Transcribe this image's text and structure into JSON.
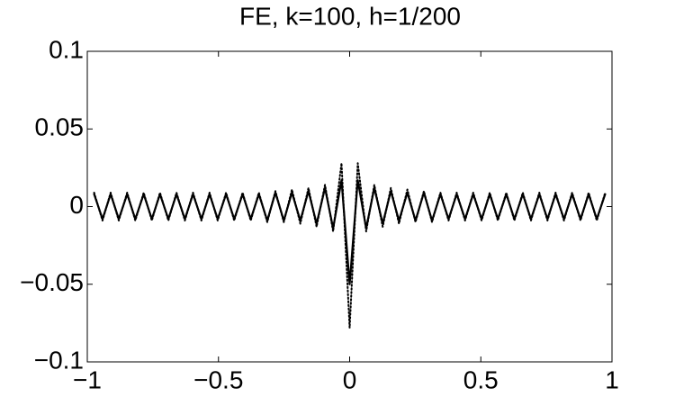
{
  "chart_data": {
    "type": "line",
    "title": "FE, k=100, h=1/200",
    "x": [
      -0.974,
      -0.942,
      -0.911,
      -0.88,
      -0.848,
      -0.817,
      -0.785,
      -0.754,
      -0.723,
      -0.691,
      -0.66,
      -0.628,
      -0.597,
      -0.565,
      -0.534,
      -0.503,
      -0.471,
      -0.44,
      -0.408,
      -0.377,
      -0.346,
      -0.314,
      -0.283,
      -0.251,
      -0.22,
      -0.188,
      -0.157,
      -0.126,
      -0.094,
      -0.063,
      -0.031,
      0,
      0.031,
      0.063,
      0.094,
      0.126,
      0.157,
      0.188,
      0.22,
      0.251,
      0.283,
      0.314,
      0.346,
      0.377,
      0.408,
      0.44,
      0.471,
      0.503,
      0.534,
      0.565,
      0.597,
      0.628,
      0.66,
      0.691,
      0.723,
      0.754,
      0.785,
      0.817,
      0.848,
      0.88,
      0.911,
      0.942,
      0.974
    ],
    "series": [
      {
        "color": "#000000",
        "dash": "solid",
        "values": [
          0.008,
          -0.008,
          0.008,
          -0.008,
          0.008,
          -0.008,
          0.008,
          -0.008,
          0.008,
          -0.008,
          0.008,
          -0.008,
          0.008,
          -0.008,
          0.008,
          -0.008,
          0.008,
          -0.008,
          0.008,
          -0.008,
          0.008,
          -0.009,
          0.009,
          -0.009,
          0.009,
          -0.009,
          0.01,
          -0.011,
          0.012,
          -0.014,
          0.017,
          -0.05,
          0.017,
          -0.014,
          0.012,
          -0.011,
          0.01,
          -0.009,
          0.009,
          -0.009,
          0.009,
          -0.009,
          0.008,
          -0.008,
          0.008,
          -0.008,
          0.008,
          -0.008,
          0.008,
          -0.008,
          0.008,
          -0.008,
          0.008,
          -0.008,
          0.008,
          -0.008,
          0.008,
          -0.008,
          0.008,
          -0.008,
          0.008,
          -0.008,
          0.008
        ]
      },
      {
        "color": "#000000",
        "dash": "dotted",
        "values": [
          0.009,
          -0.009,
          0.009,
          -0.009,
          0.009,
          -0.009,
          0.009,
          -0.009,
          0.009,
          -0.009,
          0.009,
          -0.009,
          0.009,
          -0.009,
          0.009,
          -0.009,
          0.009,
          -0.009,
          0.009,
          -0.009,
          0.009,
          -0.01,
          0.01,
          -0.01,
          0.011,
          -0.011,
          0.012,
          -0.013,
          0.014,
          -0.016,
          0.028,
          -0.078,
          0.028,
          -0.016,
          0.014,
          -0.013,
          0.012,
          -0.011,
          0.011,
          -0.01,
          0.01,
          -0.01,
          0.009,
          -0.009,
          0.009,
          -0.009,
          0.009,
          -0.009,
          0.009,
          -0.009,
          0.009,
          -0.009,
          0.009,
          -0.009,
          0.009,
          -0.009,
          0.009,
          -0.009,
          0.009,
          -0.009,
          0.009,
          -0.009,
          0.009
        ]
      }
    ],
    "xlim": [
      -1,
      1
    ],
    "xticks": [
      {
        "value": -1,
        "label": "−1"
      },
      {
        "value": -0.5,
        "label": "−0.5"
      },
      0,
      0.5,
      1
    ],
    "ylim": [
      -0.1,
      0.1
    ],
    "yticks": [
      {
        "value": -0.1,
        "label": "−0.1"
      },
      {
        "value": -0.05,
        "label": "−0.05"
      },
      0,
      0.05,
      0.1
    ]
  }
}
